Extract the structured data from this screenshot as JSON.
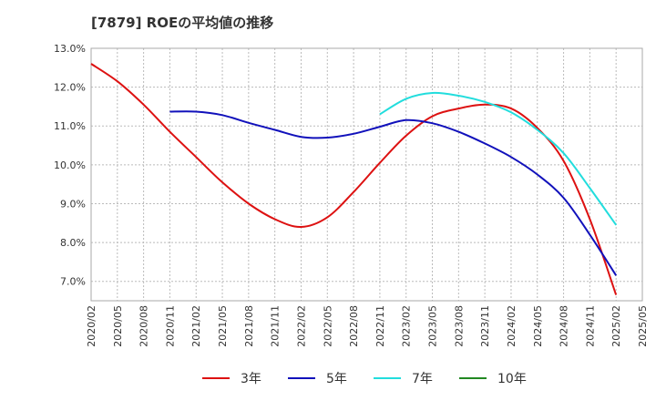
{
  "chart_data": {
    "type": "line",
    "title": "[7879]  ROEの平均値の推移",
    "xlabel": "",
    "ylabel": "",
    "ylim": [
      6.5,
      13.0
    ],
    "y_ticks": [
      7.0,
      8.0,
      9.0,
      10.0,
      11.0,
      12.0,
      13.0
    ],
    "y_tick_labels": [
      "7.0%",
      "8.0%",
      "9.0%",
      "10.0%",
      "11.0%",
      "12.0%",
      "13.0%"
    ],
    "x_ticks": [
      "2020/02",
      "2020/05",
      "2020/08",
      "2020/11",
      "2021/02",
      "2021/05",
      "2021/08",
      "2021/11",
      "2022/02",
      "2022/05",
      "2022/08",
      "2022/11",
      "2023/02",
      "2023/05",
      "2023/08",
      "2023/11",
      "2024/02",
      "2024/05",
      "2024/08",
      "2024/11",
      "2025/02",
      "2025/05"
    ],
    "grid": true,
    "legend_position": "bottom",
    "series": [
      {
        "name": "3年",
        "color": "#dd1111",
        "x": [
          "2020/02",
          "2020/05",
          "2020/08",
          "2020/11",
          "2021/02",
          "2021/05",
          "2021/08",
          "2021/11",
          "2022/02",
          "2022/05",
          "2022/08",
          "2022/11",
          "2023/02",
          "2023/05",
          "2023/08",
          "2023/11",
          "2024/02",
          "2024/05",
          "2024/08",
          "2024/11",
          "2025/02"
        ],
        "values": [
          12.6,
          12.15,
          11.55,
          10.85,
          10.2,
          9.55,
          9.0,
          8.6,
          8.4,
          8.65,
          9.3,
          10.05,
          10.75,
          11.25,
          11.45,
          11.55,
          11.45,
          10.95,
          10.1,
          8.6,
          6.65
        ]
      },
      {
        "name": "5年",
        "color": "#1111bb",
        "x": [
          "2020/11",
          "2021/02",
          "2021/05",
          "2021/08",
          "2021/11",
          "2022/02",
          "2022/05",
          "2022/08",
          "2022/11",
          "2023/02",
          "2023/05",
          "2023/08",
          "2023/11",
          "2024/02",
          "2024/05",
          "2024/08",
          "2024/11",
          "2025/02"
        ],
        "values": [
          11.37,
          11.37,
          11.28,
          11.08,
          10.9,
          10.72,
          10.7,
          10.8,
          10.98,
          11.15,
          11.07,
          10.85,
          10.55,
          10.2,
          9.75,
          9.15,
          8.2,
          7.15
        ]
      },
      {
        "name": "7年",
        "color": "#22dddd",
        "x": [
          "2022/11",
          "2023/02",
          "2023/05",
          "2023/08",
          "2023/11",
          "2024/02",
          "2024/05",
          "2024/08",
          "2024/11",
          "2025/02"
        ],
        "values": [
          11.3,
          11.7,
          11.85,
          11.78,
          11.62,
          11.35,
          10.9,
          10.3,
          9.4,
          8.45
        ]
      },
      {
        "name": "10年",
        "color": "#228822",
        "x": [],
        "values": []
      }
    ]
  }
}
